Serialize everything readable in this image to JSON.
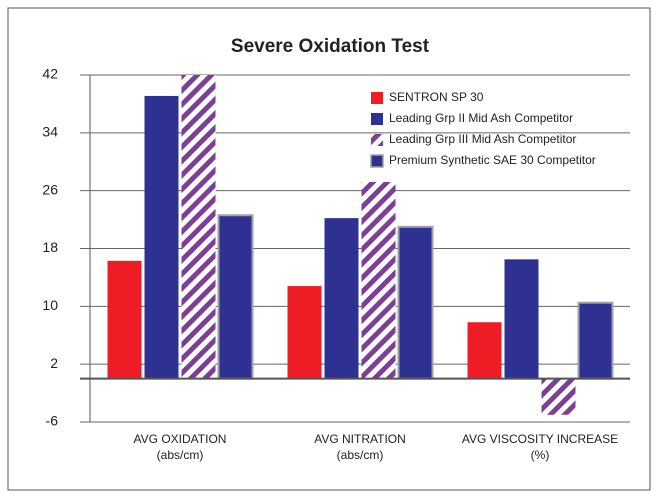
{
  "chart_data": {
    "type": "bar",
    "title": "Severe Oxidation Test",
    "categories": [
      "AVG OXIDATION",
      "AVG NITRATION",
      "AVG VISCOSITY INCREASE"
    ],
    "category_units": [
      "(abs/cm)",
      "(abs/cm)",
      "(%)"
    ],
    "series": [
      {
        "name": "SENTRON SP 30",
        "color": "#ee1c25",
        "values": [
          16.3,
          12.8,
          7.8
        ]
      },
      {
        "name": "Leading Grp II Mid Ash Competitor",
        "color": "#2e3192",
        "values": [
          39.1,
          22.2,
          16.5
        ]
      },
      {
        "name": "Leading Grp III Mid Ash Competitor",
        "color": "#7b3f98",
        "pattern": "hatch",
        "values": [
          42,
          27.2,
          -5
        ]
      },
      {
        "name": "Premium Synthetic SAE 30 Competitor",
        "color": "#2e3192",
        "border": "#a0a0a8",
        "values": [
          22.6,
          21,
          10.5
        ]
      }
    ],
    "ylim": [
      -6,
      42
    ],
    "yticks": [
      -6,
      2,
      10,
      18,
      26,
      34,
      42
    ],
    "grid": true
  }
}
